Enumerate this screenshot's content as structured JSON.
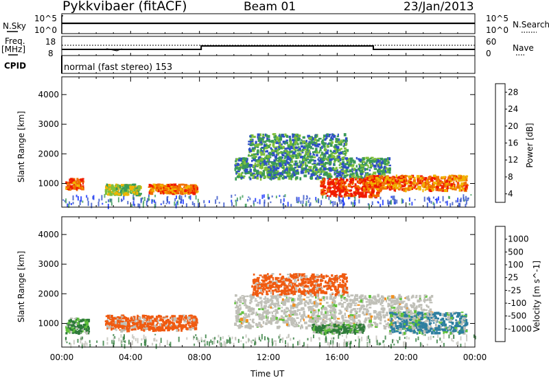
{
  "header": {
    "station": "Pykkvibaer (fitACF)",
    "beam": "Beam 01",
    "date": "23/Jan/2013"
  },
  "info_panels": {
    "nsky_label": "N.Sky",
    "nsearch_label": "N.Search",
    "nsky_ticks": [
      "10^5",
      "10^0"
    ],
    "nsearch_ticks": [
      "10^5",
      "10^0"
    ],
    "freq_label_1": "Freq.",
    "freq_label_2": "[MHz]",
    "freq_ticks": [
      "18",
      "8"
    ],
    "nave_label": "Nave",
    "nave_ticks": [
      "60",
      "0"
    ],
    "cpid_label": "CPID",
    "cpid_text": "normal (fast stereo) 153"
  },
  "chart_data": [
    {
      "type": "heatmap",
      "name": "power",
      "ylabel": "Slant Range [km]",
      "yticks": [
        1000,
        2000,
        3000,
        4000
      ],
      "ylim": [
        200,
        4600
      ],
      "colorbar_label": "Power [dB]",
      "colorbar_ticks": [
        4,
        8,
        12,
        16,
        20,
        24,
        28
      ],
      "colorbar_colors": [
        "#0a28ff",
        "#2f4fc7",
        "#3a9a56",
        "#7fbf3a",
        "#f0b400",
        "#f07000",
        "#f01a00"
      ],
      "bands": [
        {
          "t0": 0.2,
          "t1": 1.2,
          "r0": 850,
          "r1": 1200,
          "value": 24
        },
        {
          "t0": 2.5,
          "t1": 4.5,
          "r0": 650,
          "r1": 1000,
          "value": 16
        },
        {
          "t0": 5.0,
          "t1": 7.8,
          "r0": 700,
          "r1": 1000,
          "value": 24
        },
        {
          "t0": 10.0,
          "t1": 19.0,
          "r0": 1200,
          "r1": 1900,
          "value": 12
        },
        {
          "t0": 10.8,
          "t1": 16.5,
          "r0": 1900,
          "r1": 2700,
          "value": 12
        },
        {
          "t0": 15.0,
          "t1": 18.5,
          "r0": 600,
          "r1": 1200,
          "value": 28
        },
        {
          "t0": 17.5,
          "t1": 23.5,
          "r0": 800,
          "r1": 1300,
          "value": 24
        }
      ]
    },
    {
      "type": "heatmap",
      "name": "velocity",
      "ylabel": "Slant Range [km]",
      "yticks": [
        1000,
        2000,
        3000,
        4000
      ],
      "ylim": [
        200,
        4600
      ],
      "xlabel": "Time UT",
      "xticks": [
        "00:00",
        "04:00",
        "08:00",
        "12:00",
        "16:00",
        "20:00",
        "00:00"
      ],
      "colorbar_label": "Velocity [m s^-1]",
      "colorbar_ticks": [
        "1000",
        "500",
        "100",
        "25",
        "-25",
        "-100",
        "-500",
        "-1000"
      ],
      "colorbar_colors": [
        "#1a3fbf",
        "#2e7fa0",
        "#2e7a3a",
        "#5fc23a",
        "#c0c0b8",
        "#c0c0b8",
        "#f09020",
        "#f05a10",
        "#e81010"
      ],
      "bands": [
        {
          "t0": 0.2,
          "t1": 1.5,
          "r0": 700,
          "r1": 1200,
          "value": 100
        },
        {
          "t0": 2.5,
          "t1": 7.8,
          "r0": 800,
          "r1": 1300,
          "value": -100
        },
        {
          "t0": 10.0,
          "t1": 21.5,
          "r0": 900,
          "r1": 2000,
          "value": 0
        },
        {
          "t0": 11.0,
          "t1": 16.5,
          "r0": 2000,
          "r1": 2700,
          "value": -100
        },
        {
          "t0": 14.5,
          "t1": 17.5,
          "r0": 700,
          "r1": 1000,
          "value": 100
        },
        {
          "t0": 19.0,
          "t1": 23.5,
          "r0": 700,
          "r1": 1400,
          "value": 500
        }
      ]
    }
  ]
}
